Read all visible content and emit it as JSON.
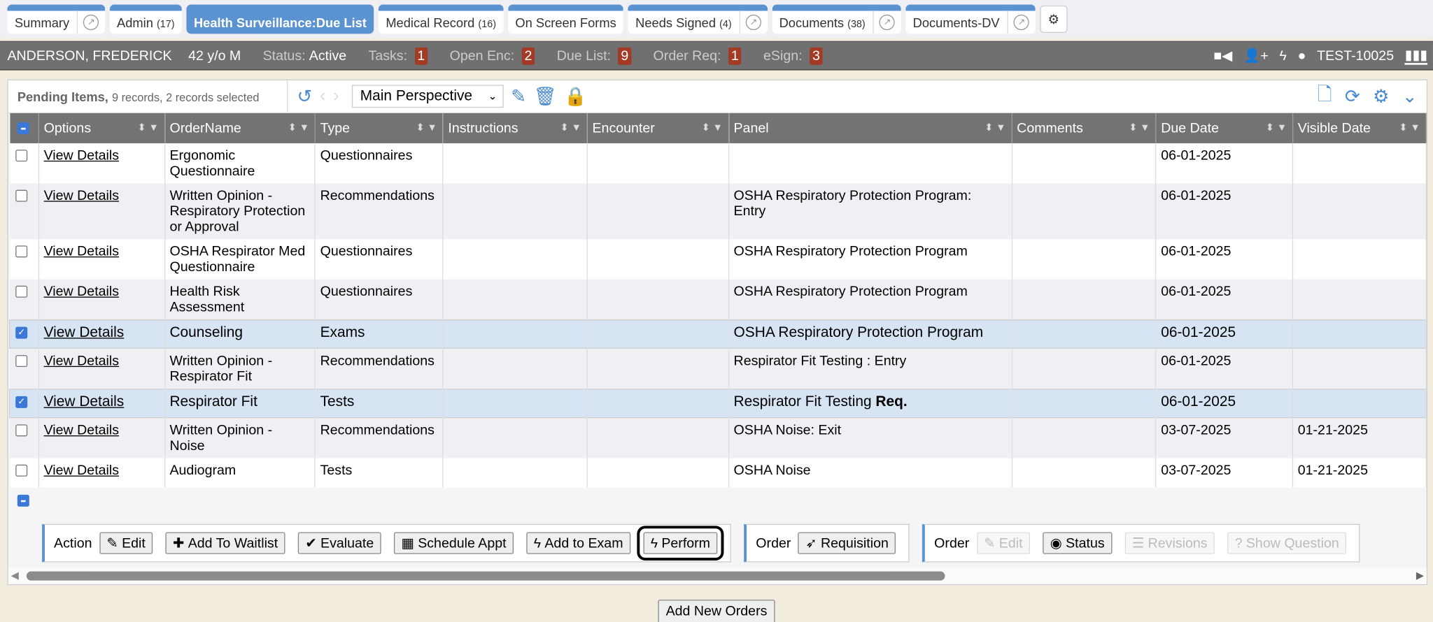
{
  "tabs": [
    {
      "label": "Summary",
      "count": "",
      "ext": true,
      "active": false
    },
    {
      "label": "Admin",
      "count": "(17)",
      "ext": false,
      "active": false
    },
    {
      "label": "Health Surveillance:Due List",
      "count": "",
      "ext": false,
      "active": true
    },
    {
      "label": "Medical Record",
      "count": "(16)",
      "ext": false,
      "active": false
    },
    {
      "label": "On Screen Forms",
      "count": "",
      "ext": false,
      "active": false
    },
    {
      "label": "Needs Signed",
      "count": "(4)",
      "ext": true,
      "active": false
    },
    {
      "label": "Documents",
      "count": "(38)",
      "ext": true,
      "active": false
    },
    {
      "label": "Documents-DV",
      "count": "",
      "ext": true,
      "active": false
    }
  ],
  "patient": {
    "name": "ANDERSON, FREDERICK",
    "age": "42 y/o M",
    "status_label": "Status:",
    "status": "Active",
    "counters": [
      {
        "label": "Tasks:",
        "value": "1"
      },
      {
        "label": "Open Enc:",
        "value": "2"
      },
      {
        "label": "Due List:",
        "value": "9"
      },
      {
        "label": "Order Req:",
        "value": "1"
      },
      {
        "label": "eSign:",
        "value": "3"
      }
    ],
    "user": "TEST-10025"
  },
  "toolbar": {
    "title": "Pending Items,",
    "subtitle": "9 records, 2 records selected",
    "perspective": "Main Perspective"
  },
  "columns": [
    "Options",
    "OrderName",
    "Type",
    "Instructions",
    "Encounter",
    "Panel",
    "Comments",
    "Due Date",
    "Visible Date"
  ],
  "rows": [
    {
      "checked": false,
      "option": "View Details",
      "order": "Ergonomic Questionnaire",
      "type": "Questionnaires",
      "panel": "",
      "panel_bold": "",
      "due": "06-01-2025",
      "visible": ""
    },
    {
      "checked": false,
      "option": "View Details",
      "order": "Written Opinion - Respiratory Protection or Approval",
      "type": "Recommendations",
      "panel": "OSHA Respiratory Protection Program: Entry",
      "panel_bold": "",
      "due": "06-01-2025",
      "visible": ""
    },
    {
      "checked": false,
      "option": "View Details",
      "order": "OSHA Respirator Med Questionnaire",
      "type": "Questionnaires",
      "panel": "OSHA Respiratory Protection Program",
      "panel_bold": "",
      "due": "06-01-2025",
      "visible": ""
    },
    {
      "checked": false,
      "option": "View Details",
      "order": "Health Risk Assessment",
      "type": "Questionnaires",
      "panel": "OSHA Respiratory Protection Program",
      "panel_bold": "",
      "due": "06-01-2025",
      "visible": ""
    },
    {
      "checked": true,
      "option": "View Details",
      "order": "Counseling",
      "type": "Exams",
      "panel": "OSHA Respiratory Protection Program",
      "panel_bold": "",
      "due": "06-01-2025",
      "visible": ""
    },
    {
      "checked": false,
      "option": "View Details",
      "order": "Written Opinion - Respirator Fit",
      "type": "Recommendations",
      "panel": "Respirator Fit Testing : Entry",
      "panel_bold": "",
      "due": "06-01-2025",
      "visible": ""
    },
    {
      "checked": true,
      "option": "View Details",
      "order": "Respirator Fit",
      "type": "Tests",
      "panel": "Respirator Fit Testing ",
      "panel_bold": "Req.",
      "due": "06-01-2025",
      "visible": ""
    },
    {
      "checked": false,
      "option": "View Details",
      "order": "Written Opinion - Noise",
      "type": "Recommendations",
      "panel": "OSHA Noise: Exit",
      "panel_bold": "",
      "due": "03-07-2025",
      "visible": "01-21-2025"
    },
    {
      "checked": false,
      "option": "View Details",
      "order": "Audiogram",
      "type": "Tests",
      "panel": "OSHA Noise",
      "panel_bold": "",
      "due": "03-07-2025",
      "visible": "01-21-2025"
    }
  ],
  "action_groups": [
    {
      "label": "Action",
      "buttons": [
        {
          "icon": "✎",
          "label": "Edit"
        },
        {
          "icon": "✚",
          "label": "Add To Waitlist"
        },
        {
          "icon": "✔",
          "label": "Evaluate"
        },
        {
          "icon": "▦",
          "label": "Schedule Appt"
        },
        {
          "icon": "ϟ",
          "label": "Add to Exam"
        },
        {
          "icon": "ϟ",
          "label": "Perform",
          "focus": true
        }
      ]
    },
    {
      "label": "Order",
      "buttons": [
        {
          "icon": "➶",
          "label": "Requisition"
        }
      ]
    },
    {
      "label": "Order",
      "buttons": [
        {
          "icon": "✎",
          "label": "Edit",
          "disabled": true
        },
        {
          "icon": "◉",
          "label": "Status"
        },
        {
          "icon": "☰",
          "label": "Revisions",
          "disabled": true
        },
        {
          "icon": "?",
          "label": "Show Question",
          "disabled": true
        }
      ]
    }
  ],
  "add_new_orders": "Add New Orders",
  "colors": {
    "accent": "#5b93d1",
    "badge": "#a33a26",
    "header": "#737373",
    "selected_row": "#d6e4f3"
  }
}
